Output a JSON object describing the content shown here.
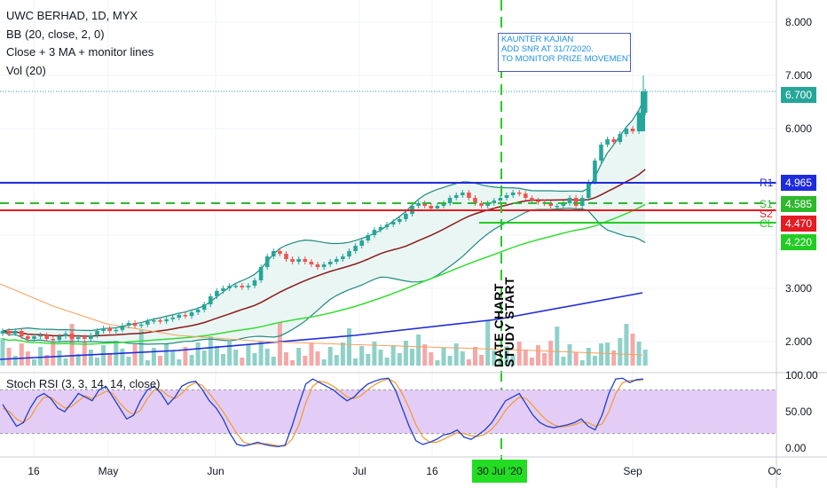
{
  "legend": {
    "symbol": "UWC BERHAD, 1D, MYX",
    "bb": "BB (20, close, 2, 0)",
    "ma": "Close + 3 MA + monitor lines",
    "vol": "Vol (20)"
  },
  "stoch": {
    "label": "Stoch RSI (3, 3, 14, 14, close)"
  },
  "annotations": {
    "callout": [
      "KAUNTER KAJIAN",
      "ADD SNR AT 31/7/2020.",
      "TO MONITOR PRIZE MOVEMENT."
    ],
    "vertical_text_1": "DATE CHART",
    "vertical_text_2": "STUDY START"
  },
  "levels": [
    {
      "label": "R1",
      "value": "4.965",
      "color": "#1f2bdc"
    },
    {
      "label": "S1",
      "value": "4.585",
      "color": "#2eb82e"
    },
    {
      "label": "S2",
      "value": "4.470",
      "color": "#e51c23"
    },
    {
      "label": "CL",
      "value": "4.220",
      "color": "#22cc22"
    }
  ],
  "last_price": "6.700",
  "colors": {
    "up": "#26a69a",
    "down": "#ef5350",
    "bb_fill": "#e8f5f3",
    "stoch_band": "#e3cdf7"
  },
  "chart_data": {
    "type": "candlestick",
    "title": "UWC BERHAD, 1D, MYX",
    "price_axis": {
      "ticks": [
        "8.000",
        "7.000",
        "6.000",
        "3.000",
        "2.000"
      ],
      "range": [
        1.6,
        8.4
      ]
    },
    "stoch_axis": {
      "ticks": [
        "100.00",
        "50.00",
        "0.00"
      ],
      "range": [
        -10,
        110
      ]
    },
    "x_ticks": [
      "16",
      "May",
      "Jun",
      "Jul",
      "16",
      "30 Jul '20",
      "Sep",
      "Oc"
    ],
    "series": [
      {
        "name": "Close",
        "values": [
          2.2,
          2.15,
          2.2,
          2.1,
          2.05,
          2.1,
          2.12,
          2.05,
          2.03,
          2.1,
          2.15,
          2.05,
          2.08,
          2.05,
          2.12,
          2.2,
          2.25,
          2.2,
          2.22,
          2.3,
          2.35,
          2.3,
          2.32,
          2.38,
          2.4,
          2.38,
          2.42,
          2.45,
          2.5,
          2.48,
          2.55,
          2.6,
          2.7,
          2.85,
          2.95,
          3.0,
          3.05,
          3.05,
          3.02,
          3.05,
          3.15,
          3.4,
          3.6,
          3.7,
          3.65,
          3.55,
          3.5,
          3.55,
          3.5,
          3.45,
          3.4,
          3.45,
          3.5,
          3.55,
          3.6,
          3.7,
          3.8,
          3.9,
          4.0,
          4.1,
          4.15,
          4.2,
          4.25,
          4.3,
          4.4,
          4.55,
          4.6,
          4.55,
          4.5,
          4.55,
          4.6,
          4.7,
          4.75,
          4.8,
          4.7,
          4.6,
          4.55,
          4.6,
          4.65,
          4.7,
          4.75,
          4.8,
          4.78,
          4.7,
          4.65,
          4.62,
          4.6,
          4.55,
          4.55,
          4.6,
          4.7,
          4.55,
          4.7,
          5.0,
          5.4,
          5.7,
          5.8,
          5.75,
          5.9,
          6.0,
          5.95,
          6.3,
          6.7
        ]
      },
      {
        "name": "Stoch RSI K",
        "values": [
          60,
          45,
          30,
          35,
          55,
          70,
          75,
          68,
          55,
          50,
          62,
          75,
          70,
          65,
          80,
          85,
          70,
          55,
          40,
          45,
          65,
          80,
          85,
          75,
          60,
          70,
          85,
          90,
          92,
          80,
          65,
          55,
          40,
          20,
          5,
          3,
          5,
          8,
          5,
          3,
          2,
          4,
          30,
          60,
          88,
          95,
          90,
          85,
          80,
          72,
          65,
          70,
          80,
          88,
          92,
          95,
          96,
          80,
          55,
          30,
          10,
          5,
          8,
          12,
          18,
          20,
          25,
          15,
          12,
          18,
          25,
          35,
          50,
          65,
          70,
          75,
          60,
          45,
          35,
          30,
          28,
          30,
          32,
          35,
          40,
          30,
          25,
          45,
          75,
          95,
          96,
          90,
          94,
          95
        ]
      },
      {
        "name": "Stoch RSI D",
        "values": [
          55,
          50,
          40,
          35,
          42,
          58,
          70,
          70,
          62,
          55,
          57,
          65,
          72,
          68,
          73,
          78,
          75,
          62,
          52,
          46,
          52,
          68,
          80,
          80,
          72,
          68,
          75,
          85,
          90,
          86,
          75,
          63,
          50,
          35,
          20,
          8,
          5,
          6,
          6,
          5,
          3,
          3,
          12,
          32,
          62,
          85,
          92,
          90,
          85,
          78,
          70,
          68,
          72,
          80,
          87,
          92,
          95,
          90,
          75,
          55,
          32,
          15,
          8,
          8,
          12,
          17,
          21,
          20,
          17,
          16,
          19,
          26,
          37,
          52,
          62,
          70,
          68,
          58,
          47,
          38,
          32,
          29,
          30,
          32,
          36,
          35,
          30,
          33,
          50,
          75,
          90,
          93,
          93,
          94
        ]
      }
    ]
  }
}
